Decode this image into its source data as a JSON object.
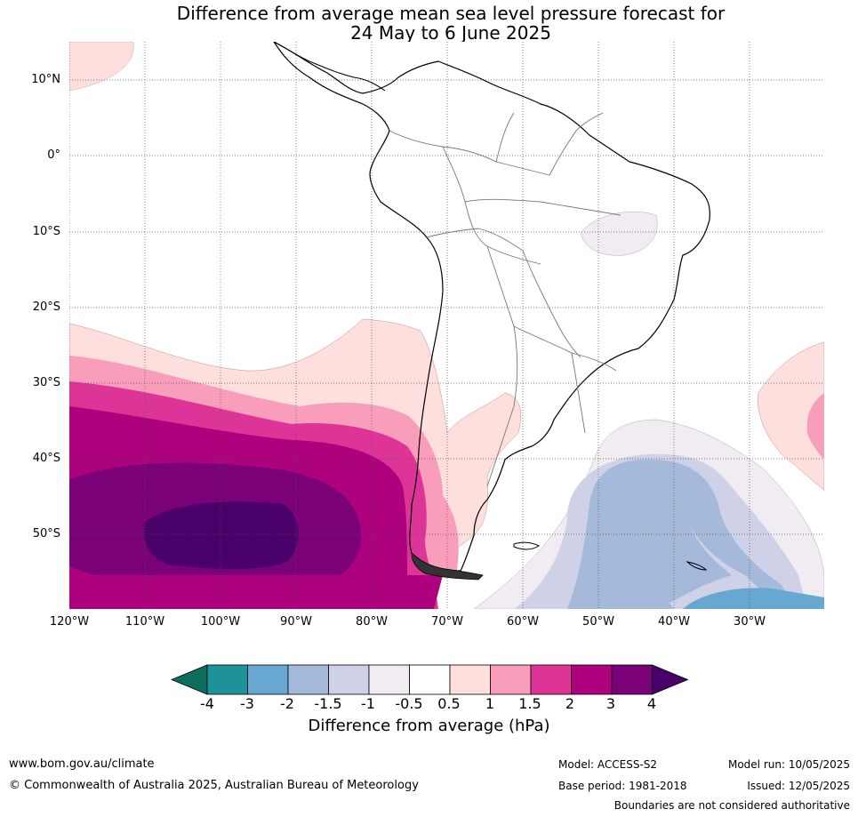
{
  "title_line1": "Difference from average mean sea level pressure forecast for",
  "title_line2": "24 May to 6 June 2025",
  "lat_labels": [
    "10°N",
    "0°",
    "10°S",
    "20°S",
    "30°S",
    "40°S",
    "50°S"
  ],
  "lon_labels": [
    "120°W",
    "110°W",
    "100°W",
    "90°W",
    "80°W",
    "70°W",
    "60°W",
    "50°W",
    "40°W",
    "30°W"
  ],
  "colorbar": {
    "ticks": [
      "-4",
      "-3",
      "-2",
      "-1.5",
      "-1",
      "-0.5",
      "0.5",
      "1",
      "1.5",
      "2",
      "3",
      "4"
    ],
    "colors": [
      "#0e6e5e",
      "#1f9198",
      "#66a8d0",
      "#a5b9da",
      "#cfd1e6",
      "#f0ecf2",
      "#ffffff",
      "#fde0de",
      "#f89ebb",
      "#dd3497",
      "#ae017e",
      "#7a0177",
      "#49006a"
    ],
    "label": "Difference from average (hPa)"
  },
  "footer": {
    "website": "www.bom.gov.au/climate",
    "copyright": "© Commonwealth of Australia 2025, Australian Bureau of Meteorology",
    "model": "Model: ACCESS-S2",
    "base_period": "Base period: 1981-2018",
    "model_run": "Model run: 10/05/2025",
    "issued": "Issued: 12/05/2025",
    "disclaimer": "Boundaries are not considered authoritative"
  }
}
